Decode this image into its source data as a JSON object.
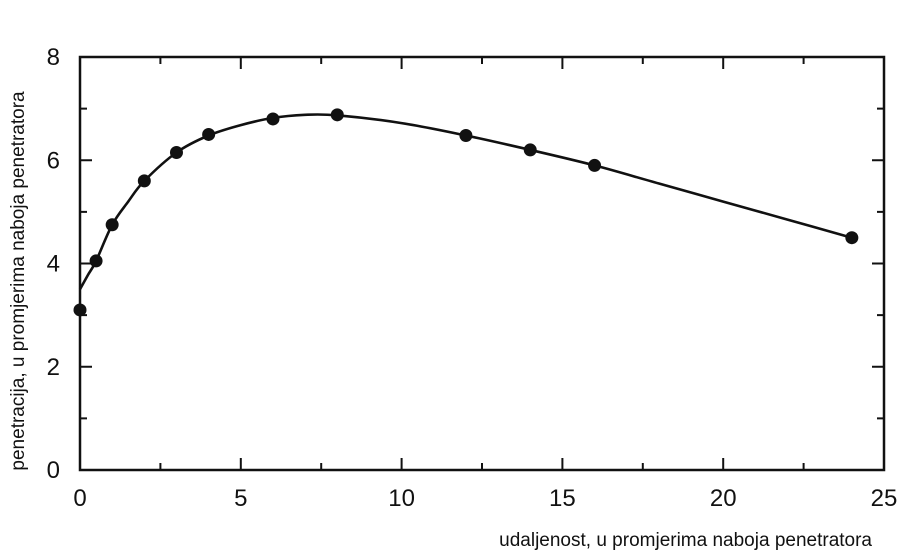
{
  "chart_data": {
    "type": "line",
    "title": "",
    "xlabel": "udaljenost, u promjerima naboja penetratora",
    "ylabel": "penetracija, u promjerima naboja penetratora",
    "xlim": [
      0,
      25
    ],
    "ylim": [
      0,
      8
    ],
    "x_ticks": [
      0,
      5,
      10,
      15,
      20,
      25
    ],
    "y_ticks": [
      0,
      2,
      4,
      6,
      8
    ],
    "x_minor_ticks": [
      2.5,
      7.5,
      12.5,
      17.5,
      22.5
    ],
    "y_minor_ticks": [
      1,
      3,
      5,
      7
    ],
    "grid": false,
    "legend": "none",
    "series": [
      {
        "points": [
          {
            "x": 0,
            "y": 3.1
          },
          {
            "x": 0.5,
            "y": 4.05
          },
          {
            "x": 1,
            "y": 4.75
          },
          {
            "x": 2,
            "y": 5.6
          },
          {
            "x": 3,
            "y": 6.15
          },
          {
            "x": 4,
            "y": 6.5
          },
          {
            "x": 6,
            "y": 6.8
          },
          {
            "x": 8,
            "y": 6.88
          },
          {
            "x": 12,
            "y": 6.48
          },
          {
            "x": 14,
            "y": 6.2
          },
          {
            "x": 16,
            "y": 5.9
          },
          {
            "x": 24,
            "y": 4.5
          }
        ],
        "curve": [
          [
            0,
            3.5
          ],
          [
            0.25,
            3.78
          ],
          [
            0.5,
            4.05
          ],
          [
            1,
            4.75
          ],
          [
            1.5,
            5.2
          ],
          [
            2,
            5.6
          ],
          [
            3,
            6.15
          ],
          [
            4,
            6.48
          ],
          [
            5,
            6.68
          ],
          [
            6,
            6.82
          ],
          [
            7,
            6.88
          ],
          [
            8,
            6.87
          ],
          [
            10,
            6.72
          ],
          [
            12,
            6.48
          ],
          [
            14,
            6.2
          ],
          [
            16,
            5.9
          ],
          [
            18,
            5.55
          ],
          [
            20,
            5.2
          ],
          [
            22,
            4.85
          ],
          [
            24,
            4.5
          ]
        ]
      }
    ]
  }
}
